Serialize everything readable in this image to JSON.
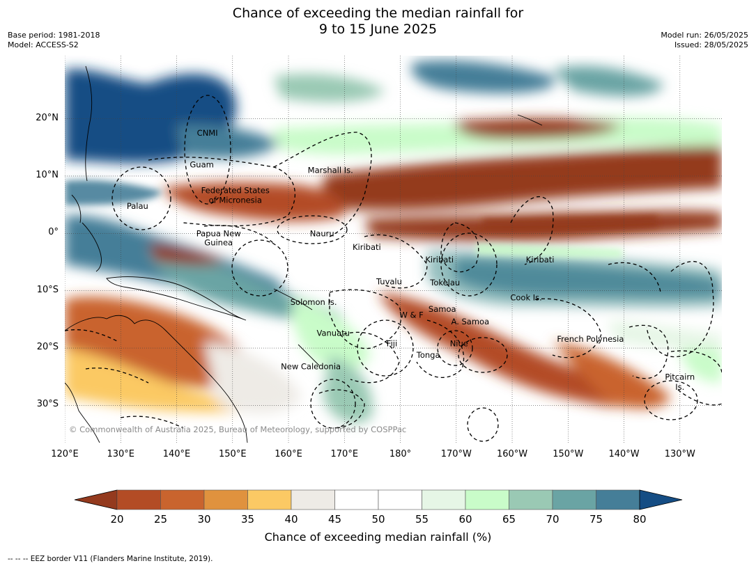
{
  "title": {
    "line1": "Chance of exceeding the median rainfall for",
    "line2": "9 to 15 June 2025"
  },
  "meta_left": {
    "base_period": "Base period: 1981-2018",
    "model": "Model: ACCESS-S2"
  },
  "meta_right": {
    "model_run": "Model run: 26/05/2025",
    "issued": "Issued: 28/05/2025"
  },
  "map": {
    "lat_labels": [
      "20°N",
      "10°N",
      "0°",
      "10°S",
      "20°S",
      "30°S"
    ],
    "lat_values": [
      20,
      10,
      0,
      -10,
      -20,
      -30
    ],
    "lon_labels": [
      "120°E",
      "130°E",
      "140°E",
      "150°E",
      "160°E",
      "170°E",
      "180°",
      "170°W",
      "160°W",
      "150°W",
      "140°W",
      "130°W"
    ],
    "lon_values": [
      120,
      130,
      140,
      150,
      160,
      170,
      180,
      190,
      200,
      210,
      220,
      230
    ],
    "lon_range": [
      120,
      237.5
    ],
    "lat_range": [
      -36.5,
      31
    ],
    "copyright": "© Commonwealth of Australia 2025, Bureau of Meteorology, supported by COSPPac",
    "regions": [
      {
        "name": "CNMI",
        "lon": 145.5,
        "lat": 17.5
      },
      {
        "name": "Guam",
        "lon": 144.5,
        "lat": 12
      },
      {
        "name": "Marshall Is.",
        "lon": 167.5,
        "lat": 11
      },
      {
        "name": "Federated States",
        "lon": 150.5,
        "lat": 7.5
      },
      {
        "name": "of Micronesia",
        "lon": 150.5,
        "lat": 5.8
      },
      {
        "name": "Palau",
        "lon": 133,
        "lat": 4.8
      },
      {
        "name": "Papua New",
        "lon": 147.5,
        "lat": 0
      },
      {
        "name": "Guinea",
        "lon": 147.5,
        "lat": -1.6
      },
      {
        "name": "Nauru",
        "lon": 166,
        "lat": 0
      },
      {
        "name": "Kiribati",
        "lon": 174,
        "lat": -2.4
      },
      {
        "name": "Kiribati",
        "lon": 187,
        "lat": -4.6
      },
      {
        "name": "Kiribati",
        "lon": 205,
        "lat": -4.6
      },
      {
        "name": "Tuvalu",
        "lon": 178,
        "lat": -8.4
      },
      {
        "name": "Tokelau",
        "lon": 188,
        "lat": -8.6
      },
      {
        "name": "Cook Is.",
        "lon": 202.5,
        "lat": -11.2
      },
      {
        "name": "Solomon Is.",
        "lon": 164.5,
        "lat": -12
      },
      {
        "name": "W & F",
        "lon": 182,
        "lat": -14.2
      },
      {
        "name": "Samoa",
        "lon": 187.5,
        "lat": -13.2
      },
      {
        "name": "A. Samoa",
        "lon": 192.5,
        "lat": -15.4
      },
      {
        "name": "Vanuatu",
        "lon": 168,
        "lat": -17.4
      },
      {
        "name": "Fiji",
        "lon": 178.5,
        "lat": -19.2
      },
      {
        "name": "Niue",
        "lon": 190.5,
        "lat": -19.2
      },
      {
        "name": "Tonga",
        "lon": 185,
        "lat": -21.2
      },
      {
        "name": "French Polynesia",
        "lon": 214,
        "lat": -18.4
      },
      {
        "name": "New Caledonia",
        "lon": 164,
        "lat": -23.2
      },
      {
        "name": "Pitcairn",
        "lon": 230,
        "lat": -25
      },
      {
        "name": "Is.",
        "lon": 230,
        "lat": -26.8
      }
    ]
  },
  "colorbar": {
    "ticks": [
      "20",
      "25",
      "30",
      "35",
      "40",
      "45",
      "50",
      "55",
      "60",
      "65",
      "70",
      "75",
      "80"
    ],
    "colors": [
      "#943a1e",
      "#b34c25",
      "#c9642e",
      "#e0923e",
      "#fbc964",
      "#eeebe6",
      "#ffffff",
      "#ffffff",
      "#e6f6e6",
      "#c9fcc9",
      "#9ac9b4",
      "#6aa4a4",
      "#457e98",
      "#154d84"
    ],
    "label": "Chance of exceeding median rainfall (%)"
  },
  "footnote": "--  --  -- EEZ border V11 (Flanders Marine Institute, 2019)."
}
